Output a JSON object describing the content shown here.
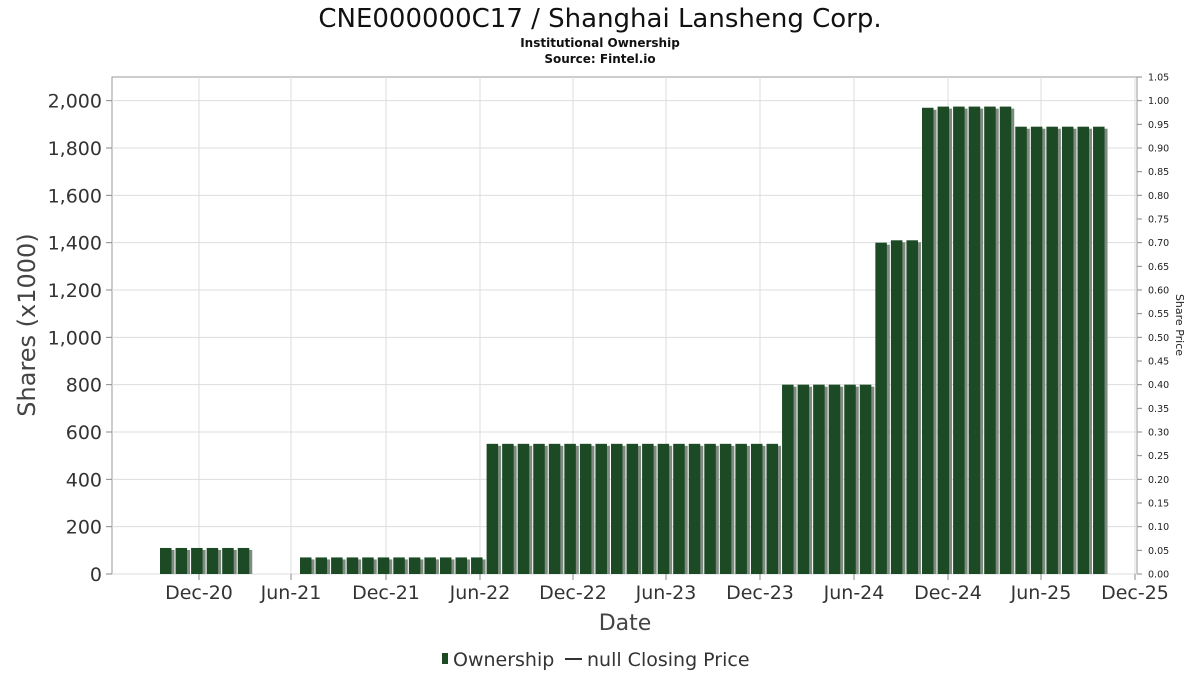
{
  "header": {
    "title": "CNE000000C17 / Shanghai Lansheng Corp.",
    "subtitle": "Institutional Ownership",
    "source": "Source: Fintel.io"
  },
  "legend": {
    "ownership_label": "Ownership",
    "price_label": "null Closing Price"
  },
  "colors": {
    "bar": "#1b4a24",
    "bar_shadow": "#7f8a80",
    "grid": "#dddddd",
    "axis": "#888888"
  },
  "chart_data": {
    "type": "bar",
    "xlabel": "Date",
    "ylabel": "Shares (x1000)",
    "y2label": "Share Price",
    "ylim": [
      0,
      2100
    ],
    "y2lim": [
      0,
      1.05
    ],
    "grid": true,
    "legend_position": "bottom",
    "x_ticks": [
      "Dec-20",
      "Jun-21",
      "Dec-21",
      "Jun-22",
      "Dec-22",
      "Jun-23",
      "Dec-23",
      "Jun-24",
      "Dec-24",
      "Jun-25",
      "Dec-25"
    ],
    "y_ticks": [
      "0",
      "200",
      "400",
      "600",
      "800",
      "1,000",
      "1,200",
      "1,400",
      "1,600",
      "1,800",
      "2,000"
    ],
    "y2_ticks": [
      "0.00",
      "0.05",
      "0.10",
      "0.15",
      "0.20",
      "0.25",
      "0.30",
      "0.35",
      "0.40",
      "0.45",
      "0.50",
      "0.55",
      "0.60",
      "0.65",
      "0.70",
      "0.75",
      "0.80",
      "0.85",
      "0.90",
      "0.95",
      "1.00",
      "1.05"
    ],
    "series": [
      {
        "name": "Ownership",
        "values": [
          110,
          110,
          110,
          110,
          110,
          110,
          70,
          70,
          70,
          70,
          70,
          70,
          70,
          70,
          70,
          70,
          70,
          70,
          550,
          550,
          550,
          550,
          550,
          550,
          550,
          550,
          550,
          550,
          550,
          550,
          550,
          550,
          550,
          550,
          550,
          550,
          550,
          800,
          800,
          800,
          800,
          800,
          800,
          1400,
          1410,
          1410,
          1970,
          1975,
          1975,
          1975,
          1975,
          1975,
          1890,
          1890,
          1890,
          1890,
          1890,
          1890
        ]
      }
    ]
  }
}
